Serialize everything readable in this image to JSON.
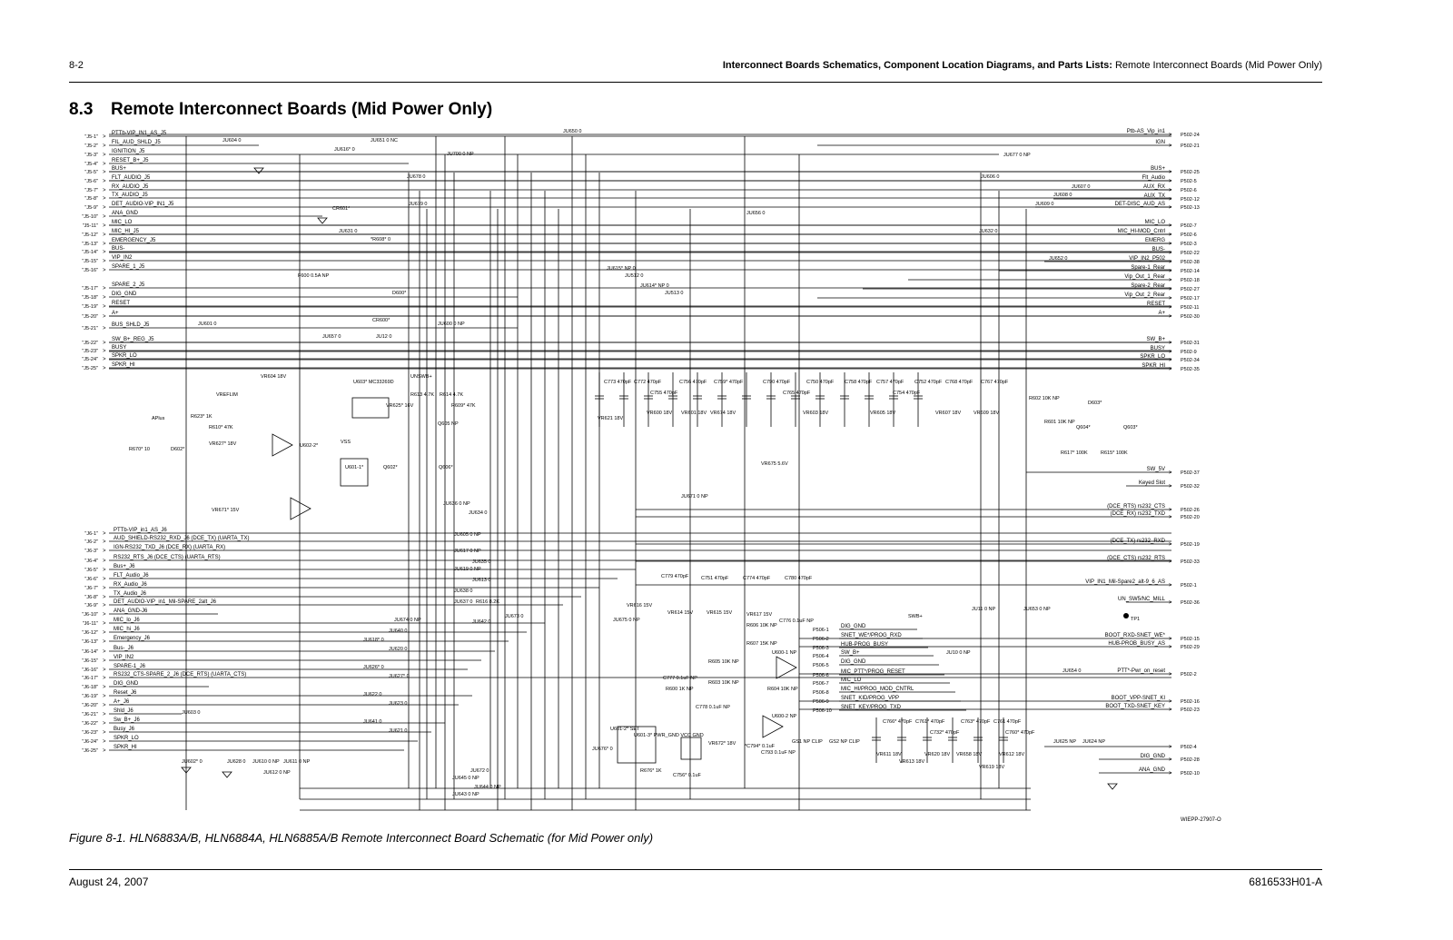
{
  "header": {
    "page_number": "8-2",
    "section_bold": "Interconnect Boards Schematics, Component Location Diagrams, and Parts Lists:",
    "section_rest": " Remote Interconnect Boards (Mid Power Only)"
  },
  "title": {
    "number": "8.3",
    "text": "Remote Interconnect Boards (Mid Power Only)"
  },
  "schematic": {
    "j5_pins": [
      "\"J5-1\"",
      "\"J5-2\"",
      "\"J5-3\"",
      "\"J5-4\"",
      "\"J5-5\"",
      "\"J5-6\"",
      "\"J5-7\"",
      "\"J5-8\"",
      "\"J5-9\"",
      "\"J5-10\"",
      "\"J5-11\"",
      "\"J5-12\"",
      "\"J5-13\"",
      "\"J5-14\"",
      "\"J5-15\"",
      "\"J5-16\"",
      "\"J5-17\"",
      "\"J5-18\"",
      "\"J5-19\"",
      "\"J5-20\"",
      "\"J5-21\"",
      "\"J5-22\"",
      "\"J5-23\"",
      "\"J5-24\"",
      "\"J5-25\""
    ],
    "j5_signals": [
      "PTTb-VIP_IN1_AS_J5",
      "FIL_AUD_SHLD_J5",
      "IGNITION_J5",
      "RESET_B+_J5",
      "BUS+",
      "FLT_AUDIO_J5",
      "RX_AUDIO_J5",
      "TX_AUDIO_J5",
      "DET_AUDIO-VIP_IN1_J5",
      "ANA_GND",
      "MIC_LO",
      "MIC_HI_J5",
      "EMERGENCY_J5",
      "BUS-",
      "VIP_IN2",
      "SPARE_1_J5",
      "SPARE_2_J5",
      "DIG_GND",
      "RESET",
      "A+",
      "BUS_SHLD_J5",
      "SW_B+_REG_J5",
      "BUSY",
      "SPKR_LO",
      "SPKR_HI"
    ],
    "j6_pins": [
      "\"J6-1\"",
      "\"J6-2\"",
      "\"J6-3\"",
      "\"J6-4\"",
      "\"J6-5\"",
      "\"J6-6\"",
      "\"J6-7\"",
      "\"J6-8\"",
      "\"J6-9\"",
      "\"J6-10\"",
      "\"J6-11\"",
      "\"J6-12\"",
      "\"J6-13\"",
      "\"J6-14\"",
      "\"J6-15\"",
      "\"J6-16\"",
      "\"J6-17\"",
      "\"J6-18\"",
      "\"J6-19\"",
      "\"J6-20\"",
      "\"J6-21\"",
      "\"J6-22\"",
      "\"J6-23\"",
      "\"J6-24\"",
      "\"J6-25\""
    ],
    "j6_signals": [
      "PTTb-VIP_in1_AS_J6",
      "AUD_SHIELD-RS232_RXD_J6   (DCE_TX) (UARTA_TX)",
      "IGN-RS232_TXD_J6              (DCE_RX) (UARTA_RX)",
      "RS232_RTS_J6                   (DCE_CTS) (UARTA_RTS)",
      "Bus+_J6",
      "FLT_Audio_J6",
      "RX_Audio_J6",
      "TX_Audio_J6",
      "DET_AUDIO-VIP_in1_Mil-SPARE_2alt_J6",
      "ANA_GND-J6",
      "MIC_lo_J6",
      "MIC_hi_J6",
      "Emergency_J6",
      "Bus-_J6",
      "VIP_IN2",
      "SPARE-1_J6",
      "RS232_CTS-SPARE_2_J6  (DCE_RTS)  (UARTA_CTS)",
      "DIG_GND",
      "Reset_J6",
      "A+_J6",
      "Shld_J6",
      "Sw_B+_J6",
      "Busy_J6",
      "SPKR_LO",
      "SPKR_HI"
    ],
    "p502_pins": [
      "P502-24",
      "P502-21",
      "P502-25",
      "P502-5",
      "P502-6",
      "P502-12",
      "P502-13",
      "P502-7",
      "P502-6",
      "P502-3",
      "P502-22",
      "P502-38",
      "P502-14",
      "P502-18",
      "P502-27",
      "P502-17",
      "P502-11",
      "P502-30",
      "P502-31",
      "P502-9",
      "P502-34",
      "P502-35",
      "P502-37",
      "P502-32",
      "P502-26",
      "P502-20",
      "P502-19",
      "P502-33",
      "P502-1",
      "P502-36",
      "P502-15",
      "P502-29",
      "P502-2",
      "P502-16",
      "P502-23",
      "P502-4",
      "P502-28",
      "P502-10"
    ],
    "p502_signals": [
      "Ptb-AS_Vip_in1",
      "IGN",
      "BUS+",
      "Flt_Audio",
      "AUX_RX",
      "AUX_TX",
      "DET-DISC_AUD_AS",
      "MIC_LO",
      "MIC_HI-MOD_Cntrl",
      "EMERG",
      "BUS-",
      "VIP_IN2_P502",
      "Spare-1_Rear",
      "Vip_Out_1_Rear",
      "Spare-2_Rear",
      "Vip_Out_2_Rear",
      "RESET",
      "A+",
      "SW_B+",
      "BUSY",
      "SPKR_LO",
      "SPKR_HI",
      "SW_5V",
      "Keyed Slot",
      "(DCE_RTS)        rs232_CTS",
      "(DCE_RX)         rs232_TXD",
      "(DCE_TX)         rs232_RXD",
      "(DCE_CTS)        rs232_RTS",
      "VIP_IN1_Mil-Spare2_alt-9_6_AS",
      "UN_SW5/NC_MILL",
      "BOOT_RXD-SNET_WE*",
      "HUB-PROB_BUSY_AS",
      "PTT*-Pwr_on_reset",
      "BOOT_VPP-SNET_KI",
      "BOOT_TXD-SNET_KEY",
      "",
      "DIG_GND",
      "ANA_GND"
    ],
    "p506_pins": [
      "P506-1",
      "P506-2",
      "P506-3",
      "P506-4",
      "P506-5",
      "P506-6",
      "P506-7",
      "P506-8",
      "P506-9",
      "P506-10"
    ],
    "p506_signals": [
      "DIG_GND",
      "SNET_WE*/PROG_RXD",
      "HUB-PROG_BUSY",
      "SW_B+",
      "DIG_GND",
      "MIC_PTT*/PROG_RESET",
      "MIC_LO",
      "MIC_HI/PROG_MOD_CNTRL",
      "SNET_KID/PROG_VPP",
      "SNET_KEY/PROG_TXD"
    ],
    "components": [
      "JU604 0",
      "JU616* 0",
      "JU651 0 NC",
      "JU650 0",
      "JU700 0 NP",
      "JU678 0",
      "JU679 0",
      "CR601*",
      "JU631 0",
      "*R608* 0",
      "F600 0.5A NP",
      "D600*",
      "CR600*",
      "JU600 0 NP",
      "JU601 0",
      "JU657 0",
      "JU12 0",
      "JU656 0",
      "JU615* NP 0",
      "JU512 0",
      "JU614* NP 0",
      "JU513 0",
      "JU677 0 NP",
      "JU606 0",
      "JU607 0",
      "JU608 0",
      "JU609 0",
      "JU632 0",
      "JU652 0",
      "U603* MC33269D",
      "VR604 18V",
      "VR625* 16V",
      "R613 4.7K",
      "R614 4.7K",
      "R609* 47K",
      "Q605 NP",
      "U602-2*",
      "U601-1*",
      "Q602*",
      "Q606*",
      "R670* 10",
      "D602*",
      "VR627* 18V",
      "VR671* 15V",
      "R623* 1K",
      "R610* 47K",
      "C773 470pF",
      "C772 470pF",
      "C755 470pF",
      "C756 470pF",
      "C759* 470pF",
      "C790 470pF",
      "C765 470pF",
      "C750 470pF",
      "C758 470pF",
      "C757 470pF",
      "C754 470pF",
      "C752 470pF",
      "C768 470pF",
      "C767 470pF",
      "VR621 18V",
      "VR600 18V",
      "VR601 18V",
      "VR674 18V",
      "VR675 5.6V",
      "VR603 18V",
      "VR605 18V",
      "VR607 18V",
      "VR609 18V",
      "R602 10K NP",
      "R601 10K NP",
      "D603*",
      "Q604*",
      "Q603*",
      "R617* 100K",
      "R615* 100K",
      "JU671 0 NP",
      "JU636 0 NP",
      "JU634 0",
      "JU605 0 NP",
      "JU617 0 NP",
      "JU635 0",
      "JU619 0 NP",
      "JU613 0",
      "JU638 0",
      "JU637 0",
      "R616 8.2K",
      "JU673 0",
      "JU642 0",
      "JU674 0 NP",
      "JU640 0",
      "JU618* 0",
      "JU620 0",
      "JU626* 0",
      "JU627* 0",
      "JU622 0",
      "JU623 0",
      "JU641 0",
      "JU621 0",
      "JU603 0",
      "JU602* 0",
      "JU628 0",
      "JU610 0 NP",
      "JU612 0 NP",
      "JU611 0 NP",
      "C779 470pF",
      "C751 470pF",
      "C774 470pF",
      "C780 470pF",
      "VR616 15V",
      "VR614 15V",
      "VR615 15V",
      "VR617 15V",
      "JU675 0 NP",
      "R606 10K NP",
      "R607 15K NP",
      "U600-1 NP",
      "U600-2 NP",
      "C776 0.1uF NP",
      "C777 0.1uF NP",
      "R605 10K NP",
      "R603 10K NP",
      "R604 10K NP",
      "R600 1K NP",
      "C778 0.1uF NP",
      "C793 0.1uF NP",
      "GS1 NP CLIP",
      "GS2 NP CLIP",
      "U601-2* SET",
      "U601-3* PWR_GND VCC GND",
      "VR672* 18V",
      "*C794* 0.1uF",
      "R676* 1K",
      "C756* 0.1uF",
      "JU676* 0",
      "JU672 0",
      "JU645 0 NP",
      "JU644 0 NP",
      "JU643 0 NP",
      "JU11 0 NP",
      "JU653 0 NP",
      "JU10 0 NP",
      "JU654 0",
      "JU625 NP",
      "JU624 NP",
      "C766* 470pF",
      "C761* 470pF",
      "C732* 470pF",
      "C763* 470pF",
      "C761 470pF",
      "C760* 470pF",
      "VR611 18V",
      "VR613 18V",
      "VR620 18V",
      "VR658 18V",
      "VR619 18V",
      "VR612 18V",
      "TP1",
      "SWB+",
      "UNSWB+",
      "APlus",
      "VREFLIM",
      "VSS"
    ]
  },
  "caption": "Figure 8-1. HLN6883A/B, HLN6884A, HLN6885A/B Remote Interconnect Board Schematic (for Mid Power only)",
  "figure_id": "WIEPP-27907-O",
  "footer": {
    "date": "August 24, 2007",
    "doc_number": "6816533H01-A"
  }
}
